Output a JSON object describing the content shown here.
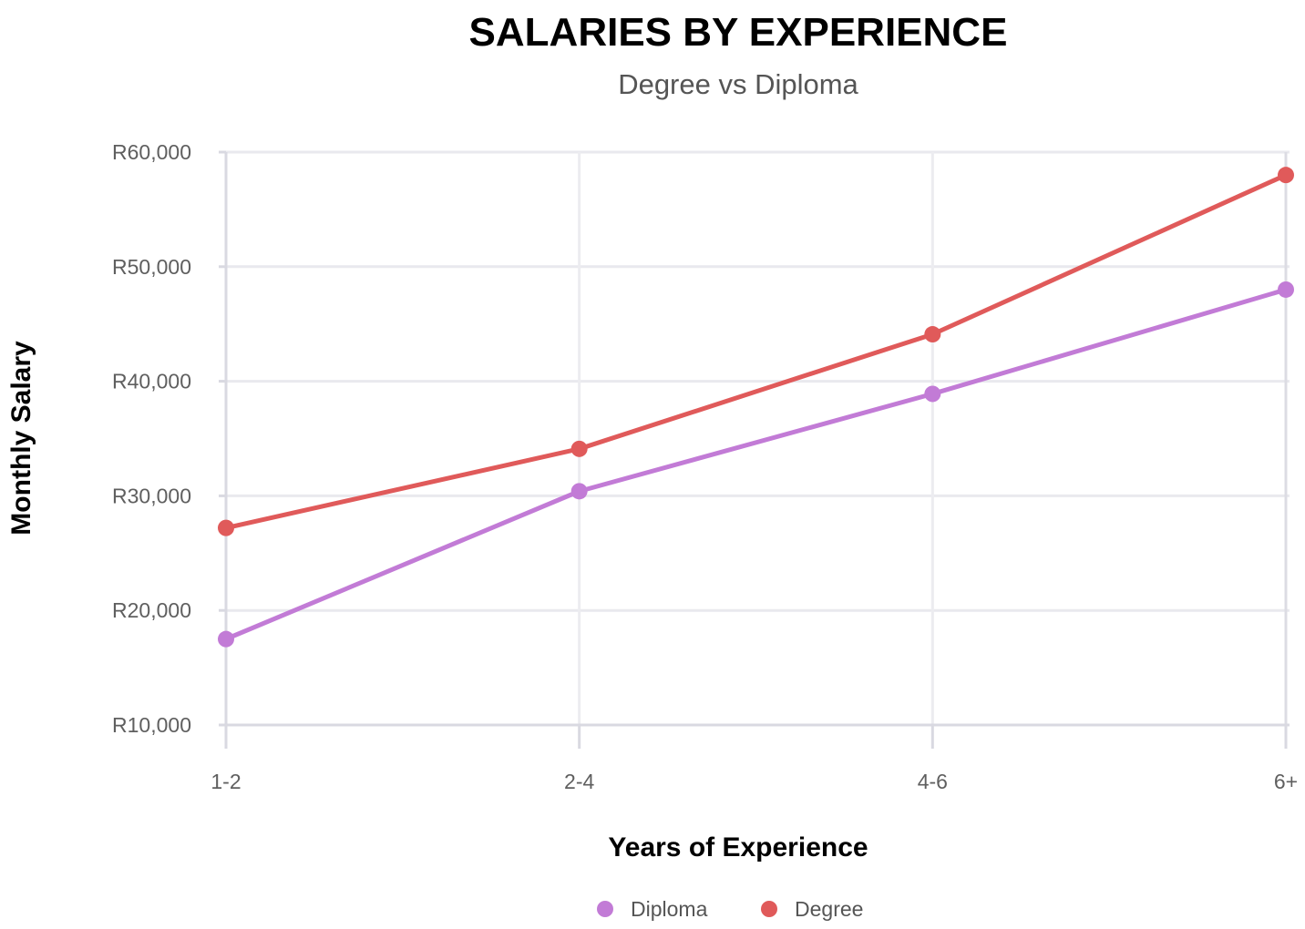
{
  "chart_data": {
    "type": "line",
    "title": "SALARIES BY EXPERIENCE",
    "subtitle": "Degree vs Diploma",
    "xlabel": "Years of Experience",
    "ylabel": "Monthly Salary",
    "categories": [
      "1-2",
      "2-4",
      "4-6",
      "6+"
    ],
    "ylim": [
      10000,
      60000
    ],
    "y_ticks": [
      10000,
      20000,
      30000,
      40000,
      50000,
      60000
    ],
    "y_tick_labels": [
      "R10,000",
      "R20,000",
      "R30,000",
      "R40,000",
      "R50,000",
      "R60,000"
    ],
    "grid": true,
    "legend_position": "bottom-center",
    "series": [
      {
        "name": "Diploma",
        "color": "#c27bd6",
        "values": [
          17500,
          30400,
          38900,
          48000
        ]
      },
      {
        "name": "Degree",
        "color": "#e05a5a",
        "values": [
          27200,
          34100,
          44100,
          58000
        ]
      }
    ]
  }
}
